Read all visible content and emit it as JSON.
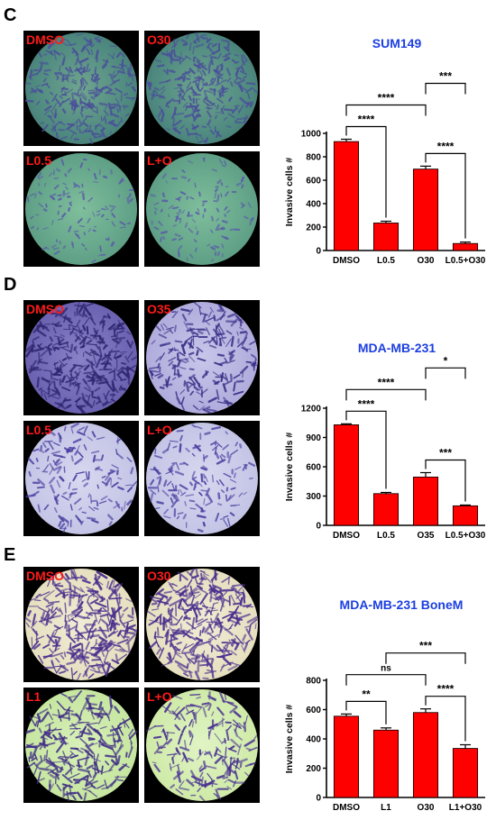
{
  "colors": {
    "bar": "#ff0000",
    "title": "#1c3fe0",
    "micro_label": "#ff1a1a"
  },
  "panels": [
    {
      "letter": "C",
      "images": [
        {
          "label": "DMSO",
          "style": "green-dense"
        },
        {
          "label": "O30",
          "style": "green-dense"
        },
        {
          "label": "L0.5",
          "style": "green-sparse"
        },
        {
          "label": "L+O",
          "style": "green-sparse"
        }
      ]
    },
    {
      "letter": "D",
      "images": [
        {
          "label": "DMSO",
          "style": "purple-dense"
        },
        {
          "label": "O35",
          "style": "purple-medium"
        },
        {
          "label": "L0.5",
          "style": "purple-sparse"
        },
        {
          "label": "L+O",
          "style": "purple-sparse"
        }
      ]
    },
    {
      "letter": "E",
      "images": [
        {
          "label": "DMSO",
          "style": "cream-dense"
        },
        {
          "label": "O30",
          "style": "cream-dense"
        },
        {
          "label": "L1",
          "style": "lime-medium"
        },
        {
          "label": "L+O",
          "style": "lime-sparse"
        }
      ]
    }
  ],
  "chart_data": [
    {
      "type": "bar",
      "title": "SUM149",
      "ylabel": "Invasive cells #",
      "categories": [
        "DMSO",
        "L0.5",
        "O30",
        "L0.5+O30"
      ],
      "values": [
        930,
        235,
        695,
        60
      ],
      "errors": [
        20,
        15,
        25,
        12
      ],
      "ylim": [
        0,
        1000
      ],
      "yticks": [
        0,
        200,
        400,
        600,
        800,
        1000
      ],
      "brackets": [
        {
          "from": 0,
          "to": 1,
          "label": "****"
        },
        {
          "from": 2,
          "to": 3,
          "label": "****"
        },
        {
          "from": 0,
          "to": 2,
          "label": "****"
        },
        {
          "from": 2,
          "to": 3,
          "label": "***",
          "to_offset_only": true
        }
      ]
    },
    {
      "type": "bar",
      "title": "MDA-MB-231",
      "ylabel": "Invasive cells #",
      "categories": [
        "DMSO",
        "L0.5",
        "O35",
        "L0.5+O30"
      ],
      "values": [
        1030,
        325,
        495,
        200
      ],
      "errors": [
        10,
        12,
        45,
        8
      ],
      "ylim": [
        0,
        1200
      ],
      "yticks": [
        0,
        300,
        600,
        900,
        1200
      ],
      "brackets": [
        {
          "from": 0,
          "to": 1,
          "label": "****"
        },
        {
          "from": 2,
          "to": 3,
          "label": "***"
        },
        {
          "from": 0,
          "to": 2,
          "label": "****"
        },
        {
          "from": 2,
          "to": 3,
          "label": "*"
        }
      ]
    },
    {
      "type": "bar",
      "title": "MDA-MB-231 BoneM",
      "ylabel": "Invasive cells #",
      "categories": [
        "DMSO",
        "L1",
        "O30",
        "L1+O30"
      ],
      "values": [
        555,
        460,
        580,
        335
      ],
      "errors": [
        15,
        15,
        25,
        25
      ],
      "ylim": [
        0,
        800
      ],
      "yticks": [
        0,
        200,
        400,
        600,
        800
      ],
      "brackets": [
        {
          "from": 0,
          "to": 1,
          "label": "**"
        },
        {
          "from": 2,
          "to": 3,
          "label": "****"
        },
        {
          "from": 0,
          "to": 2,
          "label": "ns"
        },
        {
          "from": 1,
          "to": 3,
          "label": "***"
        }
      ]
    }
  ]
}
